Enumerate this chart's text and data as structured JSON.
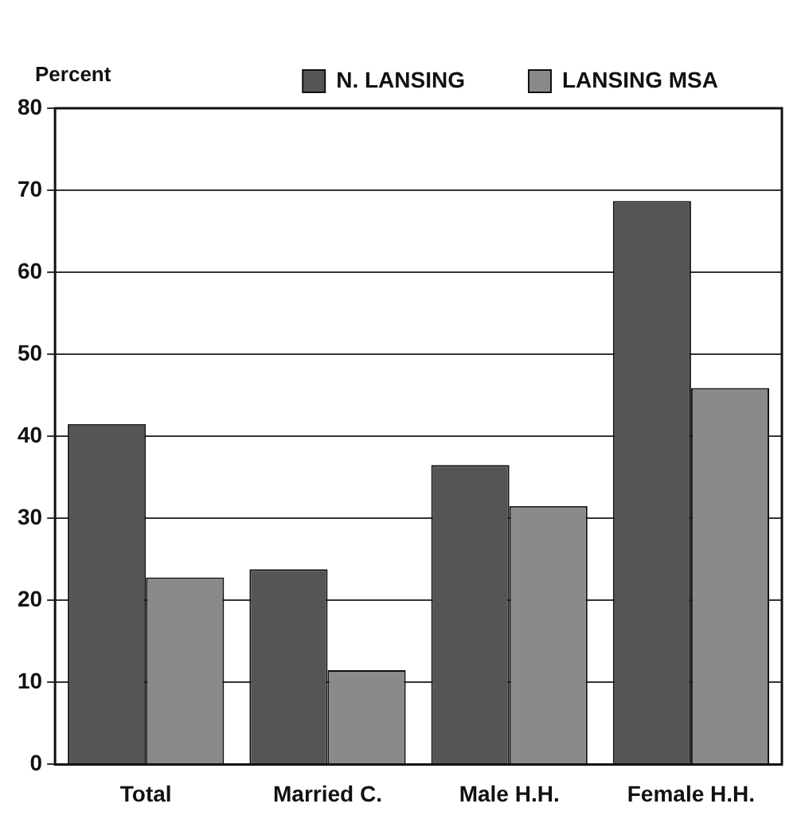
{
  "chart_data": {
    "type": "bar",
    "ylabel": "Percent",
    "categories": [
      "Total",
      "Married C.",
      "Male H.H.",
      "Female H.H."
    ],
    "series": [
      {
        "name": "N. LANSING",
        "color": "#555555",
        "values": [
          41.5,
          23.8,
          36.5,
          68.7
        ]
      },
      {
        "name": "LANSING MSA",
        "color": "#8a8a8a",
        "values": [
          22.8,
          11.5,
          31.5,
          45.9
        ]
      }
    ],
    "ylim": [
      0,
      80
    ],
    "yticks": [
      0,
      10,
      20,
      30,
      40,
      50,
      60,
      70,
      80
    ],
    "grid": "y",
    "legend": "top right"
  }
}
